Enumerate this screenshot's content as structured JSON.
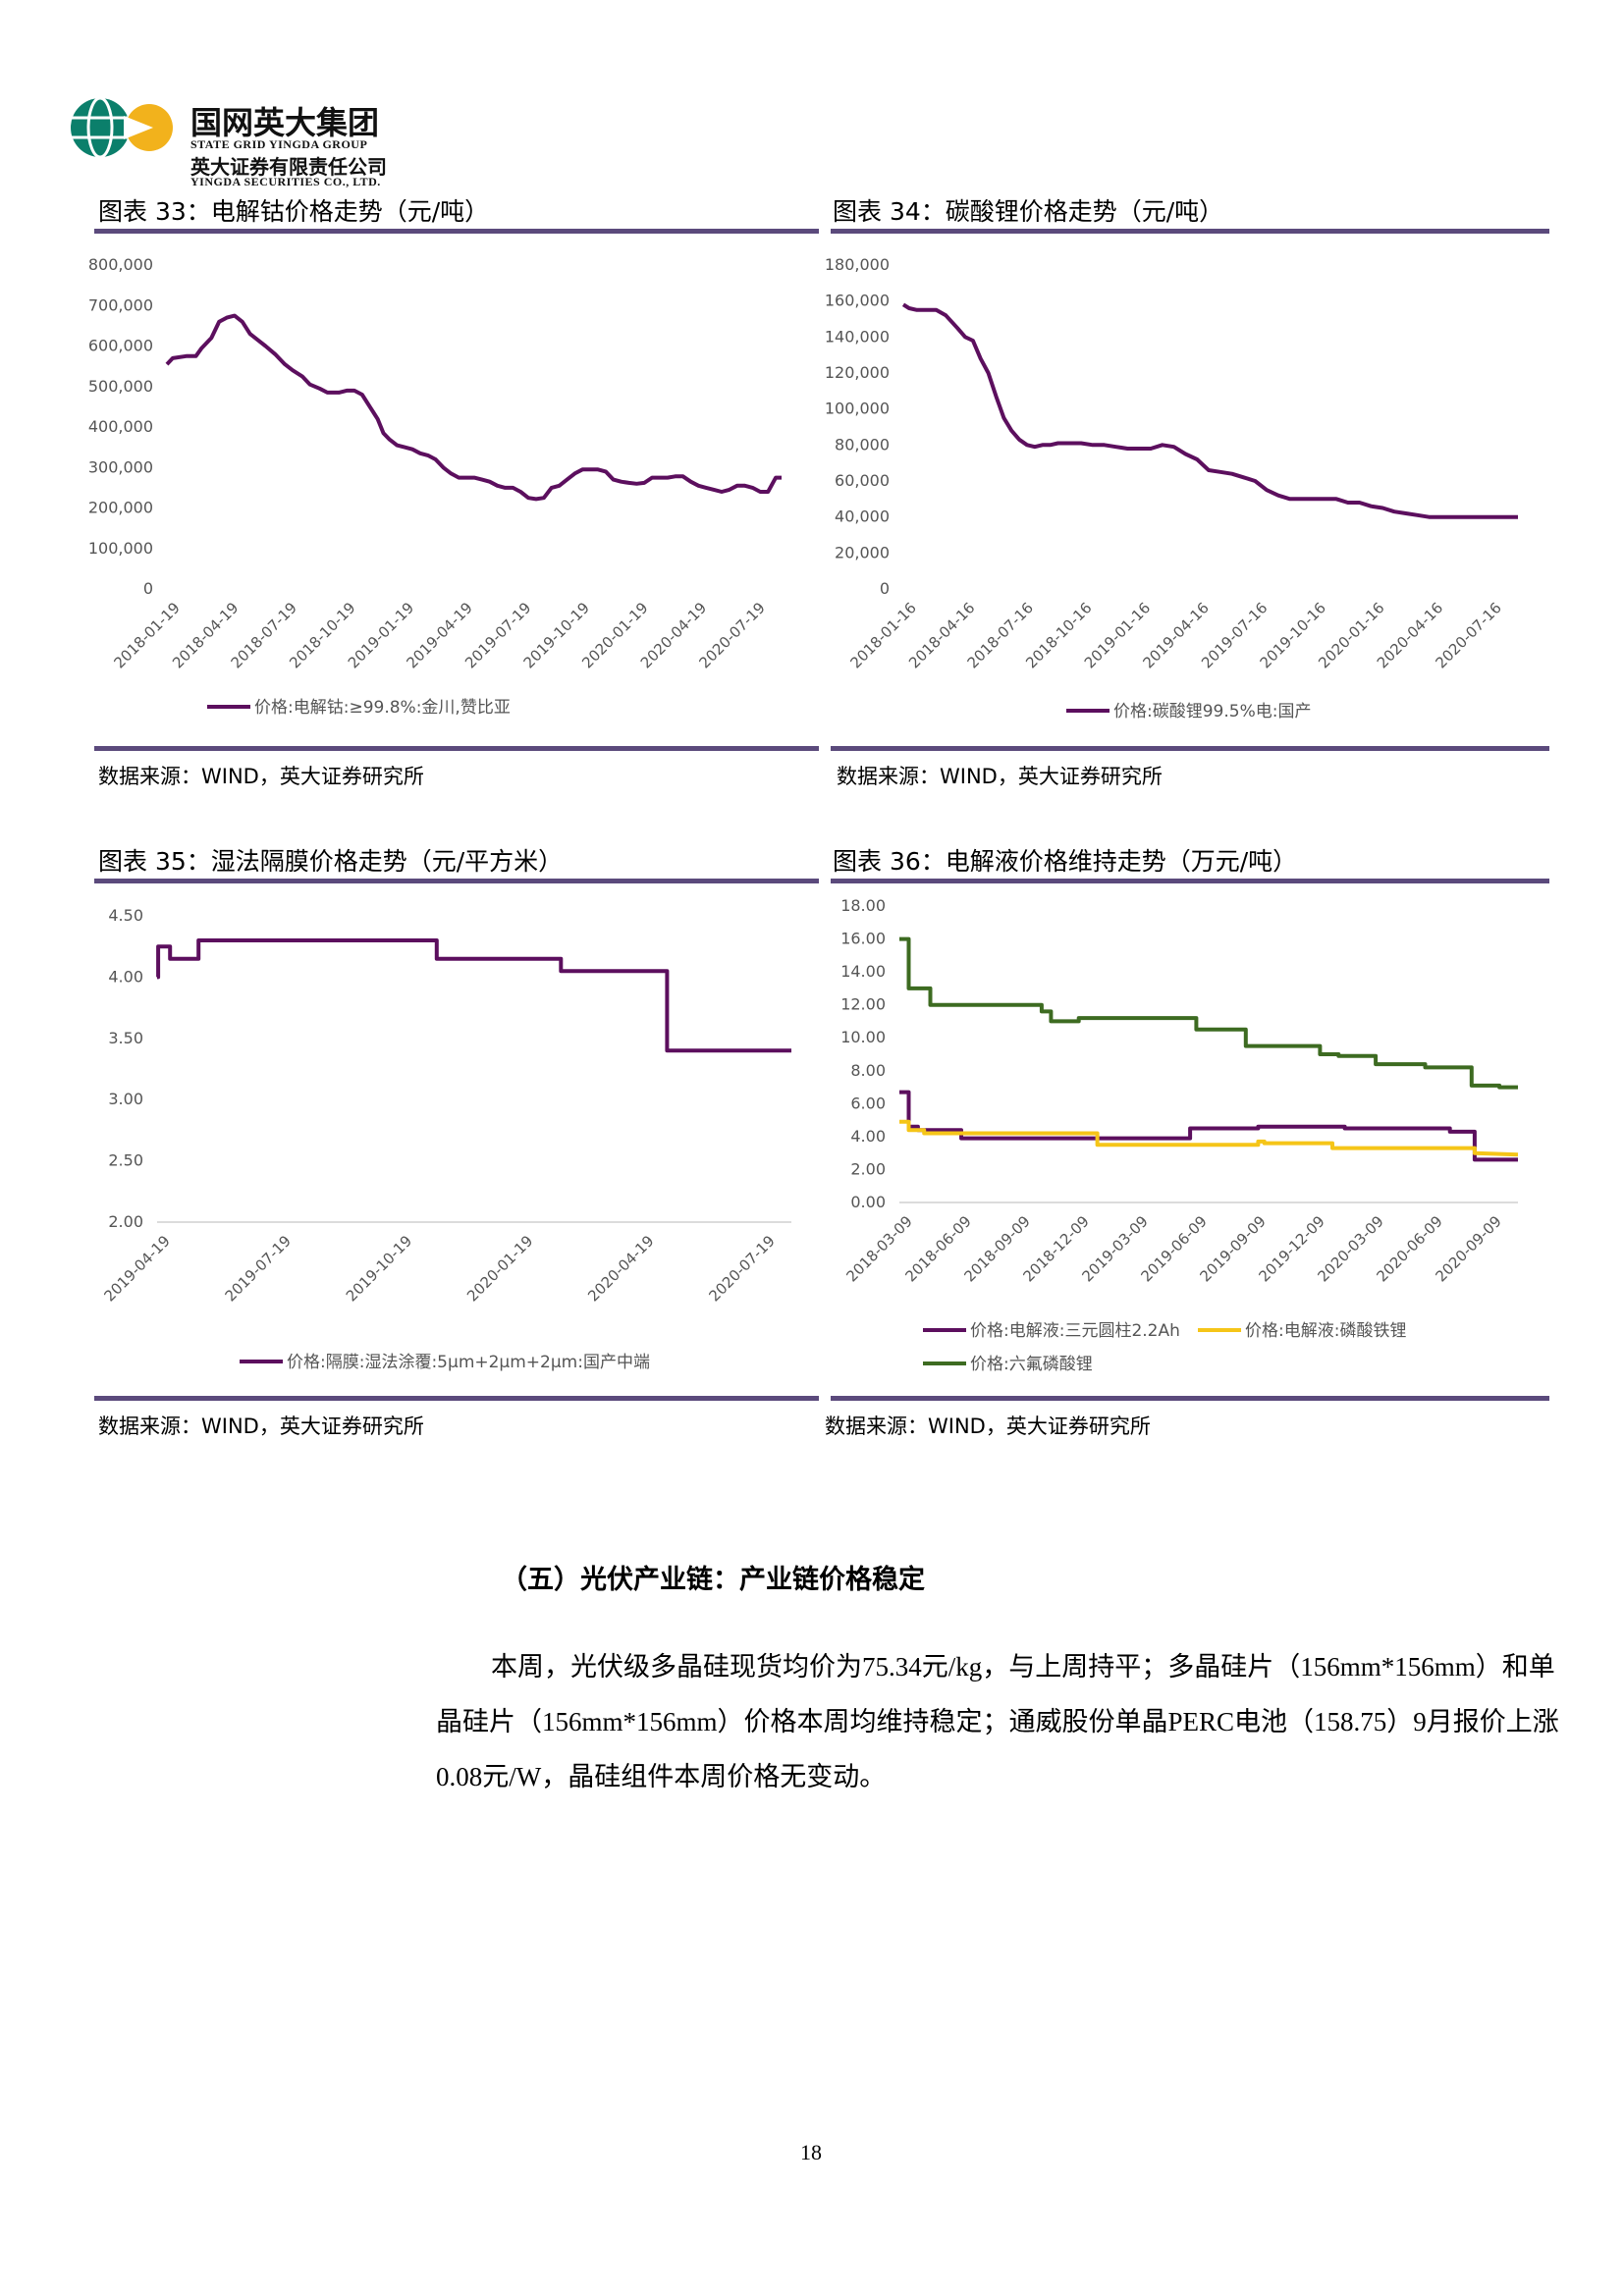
{
  "header": {
    "company_cn": "国网英大集团",
    "company_en": "STATE GRID YINGDA GROUP",
    "securities_cn": "英大证券有限责任公司",
    "securities_en": "YINGDA SECURITIES CO., LTD."
  },
  "figures": [
    {
      "title": "图表 33：电解钴价格走势（元/吨）",
      "source": "数据来源：WIND，英大证券研究所"
    },
    {
      "title": "图表 34：碳酸锂价格走势（元/吨）",
      "source": "数据来源：WIND，英大证券研究所"
    },
    {
      "title": "图表 35：湿法隔膜价格走势（元/平方米）",
      "source": "数据来源：WIND，英大证券研究所"
    },
    {
      "title": "图表 36：电解液价格维持走势（万元/吨）",
      "source": "数据来源：WIND，英大证券研究所"
    }
  ],
  "section_heading": "（五）光伏产业链：产业链价格稳定",
  "paragraph": "本周，光伏级多晶硅现货均价为75.34元/kg，与上周持平；多晶硅片（156mm*156mm）和单晶硅片（156mm*156mm）价格本周均维持稳定；通威股份单晶PERC电池（158.75）9月报价上涨0.08元/W，晶硅组件本周价格无变动。",
  "page_number": "18",
  "colors": {
    "purple": "#5c0f5e",
    "yellow": "#f5c518",
    "green": "#3d6b21",
    "rule": "#5b4a7c"
  },
  "chart_data": [
    {
      "type": "line",
      "y_ticks": [
        "800,000",
        "700,000",
        "600,000",
        "500,000",
        "400,000",
        "300,000",
        "200,000",
        "100,000",
        "0"
      ],
      "ylim": [
        0,
        800000
      ],
      "x_ticks": [
        "2018-01-19",
        "2018-04-19",
        "2018-07-19",
        "2018-10-19",
        "2019-01-19",
        "2019-04-19",
        "2019-07-19",
        "2019-10-19",
        "2020-01-19",
        "2020-04-19",
        "2020-07-19"
      ],
      "series": [
        {
          "name": "价格:电解钴:≥99.8%:金川,赞比亚",
          "x": [
            0,
            0.3,
            1,
            1.5,
            1.8,
            2.3,
            2.7,
            3.1,
            3.5,
            3.9,
            4.3,
            4.7,
            5.1,
            5.6,
            6.1,
            6.5,
            7.0,
            7.4,
            7.9,
            8.3,
            8.9,
            9.3,
            9.7,
            10.1,
            10.5,
            10.9,
            11.2,
            11.5,
            11.9,
            12.3,
            12.7,
            13.1,
            13.5,
            13.9,
            14.3,
            14.7,
            15.1,
            15.5,
            15.9,
            16.3,
            16.7,
            17.1,
            17.5,
            17.9,
            18.3,
            18.7,
            19.1,
            19.5,
            19.9,
            20.3,
            20.7,
            21.1,
            21.5,
            21.9,
            22.3,
            22.7,
            23.1,
            23.5,
            23.9,
            24.3,
            24.7,
            25.1,
            25.5,
            25.9,
            26.3,
            26.7,
            27.1,
            27.5,
            27.9,
            28.3,
            28.7,
            29.1,
            29.5,
            29.9,
            30.3,
            30.7,
            31.1,
            31.5,
            31.8
          ],
          "y": [
            555000,
            570000,
            575000,
            575000,
            595000,
            620000,
            660000,
            670000,
            675000,
            660000,
            630000,
            615000,
            600000,
            580000,
            555000,
            540000,
            525000,
            505000,
            495000,
            485000,
            485000,
            490000,
            490000,
            480000,
            450000,
            420000,
            385000,
            370000,
            355000,
            350000,
            345000,
            335000,
            330000,
            320000,
            300000,
            285000,
            275000,
            275000,
            275000,
            270000,
            265000,
            255000,
            250000,
            250000,
            240000,
            225000,
            222000,
            225000,
            250000,
            255000,
            270000,
            285000,
            295000,
            295000,
            295000,
            290000,
            270000,
            265000,
            262000,
            260000,
            262000,
            275000,
            275000,
            275000,
            278000,
            278000,
            265000,
            255000,
            250000,
            245000,
            240000,
            245000,
            255000,
            255000,
            250000,
            240000,
            240000,
            275000,
            275000
          ]
        }
      ]
    },
    {
      "type": "line",
      "y_ticks": [
        "180,000",
        "160,000",
        "140,000",
        "120,000",
        "100,000",
        "80,000",
        "60,000",
        "40,000",
        "20,000",
        "0"
      ],
      "ylim": [
        0,
        180000
      ],
      "x_ticks": [
        "2018-01-16",
        "2018-04-16",
        "2018-07-16",
        "2018-10-16",
        "2019-01-16",
        "2019-04-16",
        "2019-07-16",
        "2019-10-16",
        "2020-01-16",
        "2020-04-16",
        "2020-07-16"
      ],
      "series": [
        {
          "name": "价格:碳酸锂99.5%电:国产",
          "x": [
            0,
            0.3,
            0.7,
            1.2,
            1.7,
            2.2,
            2.8,
            3.2,
            3.6,
            4.0,
            4.4,
            4.8,
            5.2,
            5.6,
            6.0,
            6.4,
            6.8,
            7.2,
            7.6,
            8.0,
            8.6,
            9.2,
            9.8,
            10.4,
            11.0,
            11.6,
            12.2,
            12.8,
            13.4,
            14.0,
            14.6,
            15.2,
            15.8,
            16.4,
            17.0,
            17.6,
            18.2,
            18.8,
            19.4,
            20.0,
            20.6,
            21.2,
            21.8,
            22.4,
            23.0,
            23.6,
            24.2,
            24.8,
            25.4,
            26.0,
            26.6,
            27.2,
            27.8,
            28.4,
            29.0,
            29.6,
            30.2,
            30.8,
            31.4,
            31.8
          ],
          "y": [
            158000,
            156000,
            155000,
            155000,
            155000,
            152000,
            145000,
            140000,
            138000,
            128000,
            120000,
            107000,
            95000,
            88000,
            83000,
            80000,
            79000,
            80000,
            80000,
            81000,
            81000,
            81000,
            80000,
            80000,
            79000,
            78000,
            78000,
            78000,
            80000,
            79000,
            75000,
            72000,
            66000,
            65000,
            64000,
            62000,
            60000,
            55000,
            52000,
            50000,
            50000,
            50000,
            50000,
            50000,
            48000,
            48000,
            46000,
            45000,
            43000,
            42000,
            41000,
            40000,
            40000,
            40000,
            40000,
            40000,
            40000,
            40000,
            40000,
            40000
          ]
        }
      ]
    },
    {
      "type": "line",
      "y_ticks": [
        "4.50",
        "4.00",
        "3.50",
        "3.00",
        "2.50",
        "2.00"
      ],
      "ylim": [
        2.0,
        4.5
      ],
      "x_ticks": [
        "2019-04-19",
        "2019-07-19",
        "2019-10-19",
        "2020-01-19",
        "2020-04-19",
        "2020-07-19"
      ],
      "series": [
        {
          "name": "价格:隔膜:湿法涂覆:5μm+2μm+2μm:国产中端",
          "x": [
            0,
            0.04,
            0.04,
            0.5,
            0.5,
            1.6,
            1.6,
            1.9,
            1.9,
            10.8,
            10.8,
            15.6,
            15.6,
            18.9,
            18.9,
            19.7,
            19.7,
            24.5
          ],
          "y": [
            4.0,
            4.0,
            4.25,
            4.25,
            4.15,
            4.15,
            4.3,
            4.3,
            4.3,
            4.3,
            4.15,
            4.15,
            4.05,
            4.05,
            4.05,
            4.05,
            3.4,
            3.4
          ]
        }
      ]
    },
    {
      "type": "line",
      "y_ticks": [
        "18.00",
        "16.00",
        "14.00",
        "12.00",
        "10.00",
        "8.00",
        "6.00",
        "4.00",
        "2.00",
        "0.00"
      ],
      "ylim": [
        0,
        18
      ],
      "x_ticks": [
        "2018-03-09",
        "2018-06-09",
        "2018-09-09",
        "2018-12-09",
        "2019-03-09",
        "2019-06-09",
        "2019-09-09",
        "2019-12-09",
        "2020-03-09",
        "2020-06-09",
        "2020-09-09"
      ],
      "series": [
        {
          "name": "价格:电解液:三元圆柱2.2Ah",
          "x": [
            0,
            0.15,
            0.15,
            0.3,
            0.3,
            0.55,
            0.55,
            1.0,
            1.0,
            3.2,
            3.2,
            4.7,
            4.7,
            5.4,
            5.4,
            5.8,
            5.8,
            7.2,
            7.2,
            8.9,
            8.9,
            9.3,
            9.3,
            10.0
          ],
          "y": [
            6.7,
            6.7,
            4.6,
            4.6,
            4.4,
            4.4,
            4.4,
            4.4,
            3.9,
            3.9,
            3.9,
            3.9,
            4.5,
            4.5,
            4.5,
            4.5,
            4.6,
            4.6,
            4.5,
            4.5,
            4.3,
            4.3,
            2.6,
            2.6
          ]
        },
        {
          "name": "价格:电解液:磷酸铁锂",
          "x": [
            0,
            0.15,
            0.15,
            0.4,
            0.4,
            3.2,
            3.2,
            5.8,
            5.8,
            5.9,
            5.9,
            7.0,
            7.0,
            9.3,
            9.3,
            10.0
          ],
          "y": [
            4.9,
            4.9,
            4.4,
            4.4,
            4.2,
            4.2,
            3.5,
            3.5,
            3.7,
            3.7,
            3.6,
            3.6,
            3.3,
            3.3,
            3.0,
            2.9
          ]
        },
        {
          "name": "价格:六氟磷酸锂",
          "x": [
            0,
            0.15,
            0.15,
            0.5,
            0.5,
            2.3,
            2.3,
            2.45,
            2.45,
            2.9,
            2.9,
            3.9,
            3.9,
            4.8,
            4.8,
            5.6,
            5.6,
            6.8,
            6.8,
            7.1,
            7.1,
            7.7,
            7.7,
            8.5,
            8.5,
            9.25,
            9.25,
            9.7,
            9.7,
            10.0
          ],
          "y": [
            16.0,
            16.0,
            13.0,
            13.0,
            12.0,
            12.0,
            11.6,
            11.6,
            11.0,
            11.0,
            11.2,
            11.2,
            11.2,
            11.2,
            10.5,
            10.5,
            9.5,
            9.5,
            9.0,
            9.0,
            8.9,
            8.9,
            8.4,
            8.4,
            8.2,
            8.2,
            7.1,
            7.1,
            7.0,
            7.0
          ]
        }
      ]
    }
  ]
}
